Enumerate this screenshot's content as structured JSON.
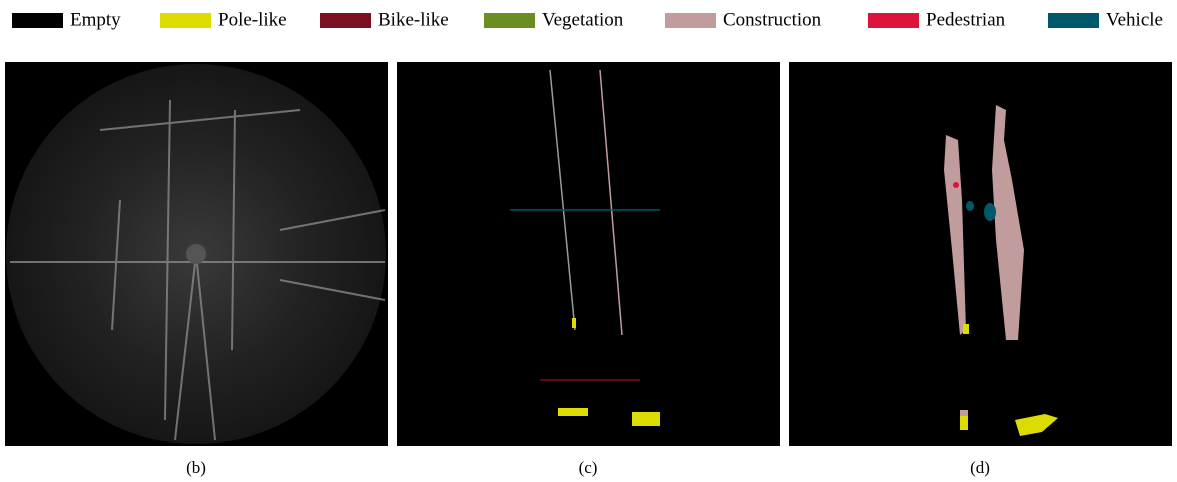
{
  "legend": [
    {
      "label": "Empty",
      "color": "#000000"
    },
    {
      "label": "Pole-like",
      "color": "#dcdc00"
    },
    {
      "label": "Bike-like",
      "color": "#7a1020"
    },
    {
      "label": "Vegetation",
      "color": "#6b8e23"
    },
    {
      "label": "Construction",
      "color": "#c09c9c"
    },
    {
      "label": "Pedestrian",
      "color": "#dc143c"
    },
    {
      "label": "Vehicle",
      "color": "#00586b"
    }
  ],
  "panels": [
    {
      "caption": "(b)"
    },
    {
      "caption": "(c)"
    },
    {
      "caption": "(d)"
    }
  ]
}
